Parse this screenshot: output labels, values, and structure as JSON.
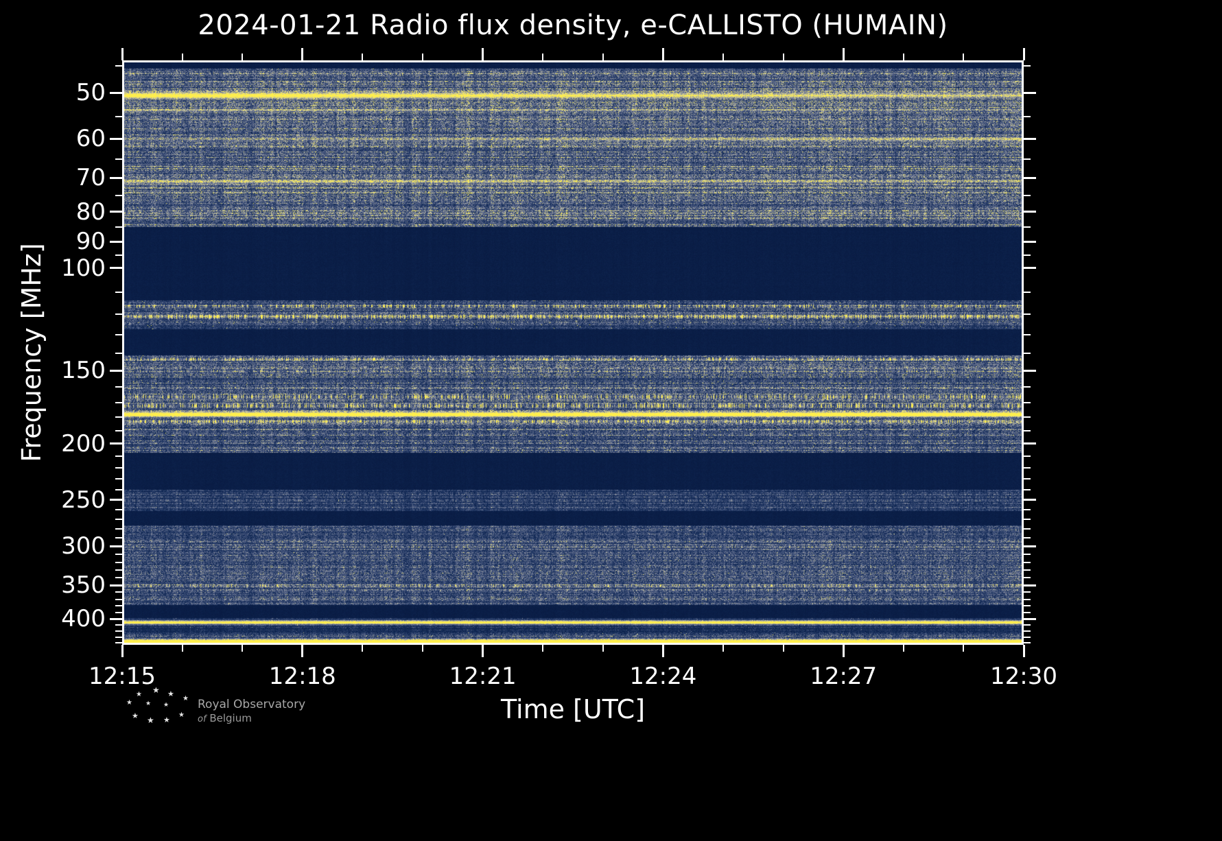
{
  "chart_data": {
    "type": "heatmap",
    "title": "2024-01-21 Radio flux density, e-CALLISTO (HUMAIN)",
    "xlabel": "Time [UTC]",
    "ylabel": "Frequency [MHz]",
    "x_ticks": [
      "12:15",
      "12:18",
      "12:21",
      "12:24",
      "12:27",
      "12:30"
    ],
    "x_minor_interval_minutes": 1,
    "x_major_interval_minutes": 3,
    "time_range_utc": [
      "12:15",
      "12:30"
    ],
    "y_scale": "log",
    "freq_range_mhz": [
      44,
      443
    ],
    "y_ticks": [
      50,
      60,
      70,
      80,
      90,
      100,
      150,
      200,
      250,
      300,
      350,
      400
    ],
    "y_minor_ticks": [
      45,
      55,
      65,
      75,
      85,
      95,
      110,
      120,
      130,
      140,
      160,
      170,
      180,
      190,
      210,
      220,
      230,
      240,
      260,
      270,
      280,
      290,
      310,
      320,
      330,
      340,
      360,
      370,
      380,
      390,
      410,
      420,
      430,
      440
    ],
    "colormap": {
      "stops": [
        {
          "v": 0.0,
          "color": "#081a41"
        },
        {
          "v": 0.18,
          "color": "#122a57"
        },
        {
          "v": 0.42,
          "color": "#48587f"
        },
        {
          "v": 0.62,
          "color": "#8e93a3"
        },
        {
          "v": 0.8,
          "color": "#d3cf9a"
        },
        {
          "v": 1.0,
          "color": "#ffef4c"
        }
      ]
    },
    "bands": [
      {
        "f_lo": 44.0,
        "f_hi": 45.4,
        "base": 0.05,
        "row_var": 0.15,
        "spark": 0.0
      },
      {
        "f_lo": 45.4,
        "f_hi": 85.0,
        "base": 0.42,
        "row_var": 0.5,
        "spark": 0.25
      },
      {
        "f_lo": 85.0,
        "f_hi": 113.5,
        "base": 0.05,
        "row_var": 0.15,
        "spark": 0.0
      },
      {
        "f_lo": 113.5,
        "f_hi": 127.0,
        "base": 0.33,
        "row_var": 0.6,
        "spark": 0.55
      },
      {
        "f_lo": 127.0,
        "f_hi": 141.0,
        "base": 0.05,
        "row_var": 0.15,
        "spark": 0.0
      },
      {
        "f_lo": 141.0,
        "f_hi": 207.0,
        "base": 0.36,
        "row_var": 0.55,
        "spark": 0.45
      },
      {
        "f_lo": 207.0,
        "f_hi": 240.0,
        "base": 0.05,
        "row_var": 0.15,
        "spark": 0.0
      },
      {
        "f_lo": 240.0,
        "f_hi": 261.0,
        "base": 0.26,
        "row_var": 0.5,
        "spark": 0.1
      },
      {
        "f_lo": 261.0,
        "f_hi": 276.0,
        "base": 0.05,
        "row_var": 0.15,
        "spark": 0.0
      },
      {
        "f_lo": 276.0,
        "f_hi": 378.0,
        "base": 0.35,
        "row_var": 0.5,
        "spark": 0.15
      },
      {
        "f_lo": 378.0,
        "f_hi": 398.0,
        "base": 0.05,
        "row_var": 0.15,
        "spark": 0.0
      },
      {
        "f_lo": 398.0,
        "f_hi": 421.0,
        "base": 0.18,
        "row_var": 0.5,
        "spark": 0.25
      },
      {
        "f_lo": 421.0,
        "f_hi": 443.0,
        "base": 0.33,
        "row_var": 0.5,
        "spark": 0.35
      }
    ],
    "lines": [
      {
        "f": 50.5,
        "width": 6,
        "intensity": 1.0,
        "style": "smooth",
        "fade": "right"
      },
      {
        "f": 53.5,
        "width": 3,
        "intensity": 0.35,
        "style": "smooth",
        "fade": "right"
      },
      {
        "f": 60.0,
        "width": 4,
        "intensity": 0.45,
        "style": "smooth",
        "fade": "left"
      },
      {
        "f": 71.0,
        "width": 5,
        "intensity": 0.38,
        "style": "smooth",
        "fade": "right"
      },
      {
        "f": 116.0,
        "width": 3,
        "intensity": 0.8,
        "style": "speckle",
        "fade": "none"
      },
      {
        "f": 121.0,
        "width": 4,
        "intensity": 0.9,
        "style": "speckle",
        "fade": "none"
      },
      {
        "f": 143.0,
        "width": 3,
        "intensity": 0.75,
        "style": "speckle",
        "fade": "none"
      },
      {
        "f": 150.0,
        "width": 3,
        "intensity": 0.4,
        "style": "speckle",
        "fade": "none"
      },
      {
        "f": 166.0,
        "width": 4,
        "intensity": 0.85,
        "style": "speckle",
        "fade": "none"
      },
      {
        "f": 172.0,
        "width": 4,
        "intensity": 0.9,
        "style": "speckle",
        "fade": "none"
      },
      {
        "f": 178.0,
        "width": 5,
        "intensity": 1.0,
        "style": "solid",
        "fade": "none"
      },
      {
        "f": 183.0,
        "width": 3,
        "intensity": 0.8,
        "style": "speckle",
        "fade": "none"
      },
      {
        "f": 250.0,
        "width": 2,
        "intensity": 0.3,
        "style": "speckle",
        "fade": "none"
      },
      {
        "f": 300.0,
        "width": 2,
        "intensity": 0.3,
        "style": "speckle",
        "fade": "none"
      },
      {
        "f": 350.0,
        "width": 3,
        "intensity": 0.45,
        "style": "speckle",
        "fade": "none"
      },
      {
        "f": 357.0,
        "width": 2,
        "intensity": 0.3,
        "style": "speckle",
        "fade": "none"
      },
      {
        "f": 405.0,
        "width": 4,
        "intensity": 1.0,
        "style": "solid",
        "fade": "none"
      },
      {
        "f": 437.0,
        "width": 5,
        "intensity": 1.0,
        "style": "solid",
        "fade": "none"
      }
    ]
  },
  "footer": {
    "org_line1": "Royal Observatory",
    "org_line2_italic": "of",
    "org_line2": "Belgium"
  }
}
